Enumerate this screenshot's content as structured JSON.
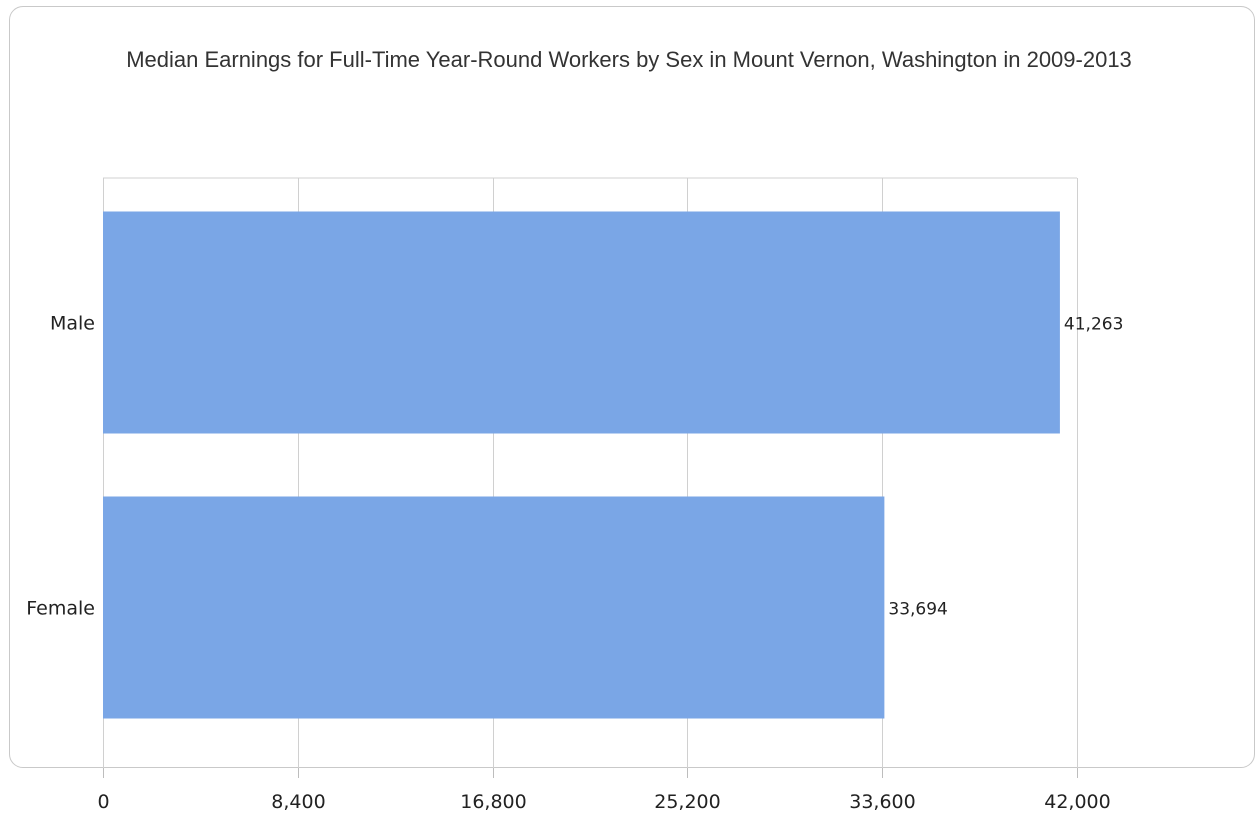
{
  "chart_data": {
    "type": "bar",
    "orientation": "horizontal",
    "title": "Median Earnings for Full-Time Year-Round Workers by Sex in Mount Vernon, Washington in 2009-2013",
    "categories": [
      "Male",
      "Female"
    ],
    "values": [
      41263,
      33694
    ],
    "value_labels": [
      "41,263",
      "33,694"
    ],
    "xlim": [
      0,
      42000
    ],
    "x_ticks": [
      0,
      8400,
      16800,
      25200,
      33600,
      42000
    ],
    "x_tick_labels": [
      "0",
      "8,400",
      "16,800",
      "25,200",
      "33,600",
      "42,000"
    ],
    "xlabel": "",
    "ylabel": "",
    "grid": true,
    "bar_color": "#7aa6e6",
    "grid_color": "#d0d0d0"
  }
}
